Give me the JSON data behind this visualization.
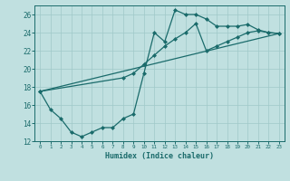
{
  "xlabel": "Humidex (Indice chaleur)",
  "bg_color": "#c0e0e0",
  "line_color": "#1a6b6b",
  "grid_color": "#9fc8c8",
  "xlim": [
    -0.5,
    23.5
  ],
  "ylim": [
    12,
    27
  ],
  "xticks": [
    0,
    1,
    2,
    3,
    4,
    5,
    6,
    7,
    8,
    9,
    10,
    11,
    12,
    13,
    14,
    15,
    16,
    17,
    18,
    19,
    20,
    21,
    22,
    23
  ],
  "yticks": [
    12,
    14,
    16,
    18,
    20,
    22,
    24,
    26
  ],
  "series1_x": [
    0,
    1,
    2,
    3,
    4,
    5,
    6,
    7,
    8,
    9,
    10,
    11,
    12,
    13,
    14,
    15,
    16,
    17,
    18,
    19,
    20,
    21,
    22,
    23
  ],
  "series1_y": [
    17.5,
    15.5,
    14.5,
    13.0,
    12.5,
    13.0,
    13.5,
    13.5,
    14.5,
    15.0,
    19.5,
    24.0,
    23.0,
    26.5,
    26.0,
    26.0,
    25.5,
    24.7,
    24.7,
    24.7,
    24.9,
    24.3,
    24.0,
    23.9
  ],
  "series2_x": [
    0,
    8,
    9,
    10,
    11,
    12,
    13,
    14,
    15,
    16,
    17,
    18,
    19,
    20,
    21,
    22,
    23
  ],
  "series2_y": [
    17.5,
    19.0,
    19.5,
    20.5,
    21.5,
    22.5,
    23.3,
    24.0,
    25.0,
    22.0,
    22.5,
    23.0,
    23.5,
    24.0,
    24.2,
    24.0,
    23.9
  ],
  "series3_x": [
    0,
    23
  ],
  "series3_y": [
    17.5,
    23.9
  ]
}
